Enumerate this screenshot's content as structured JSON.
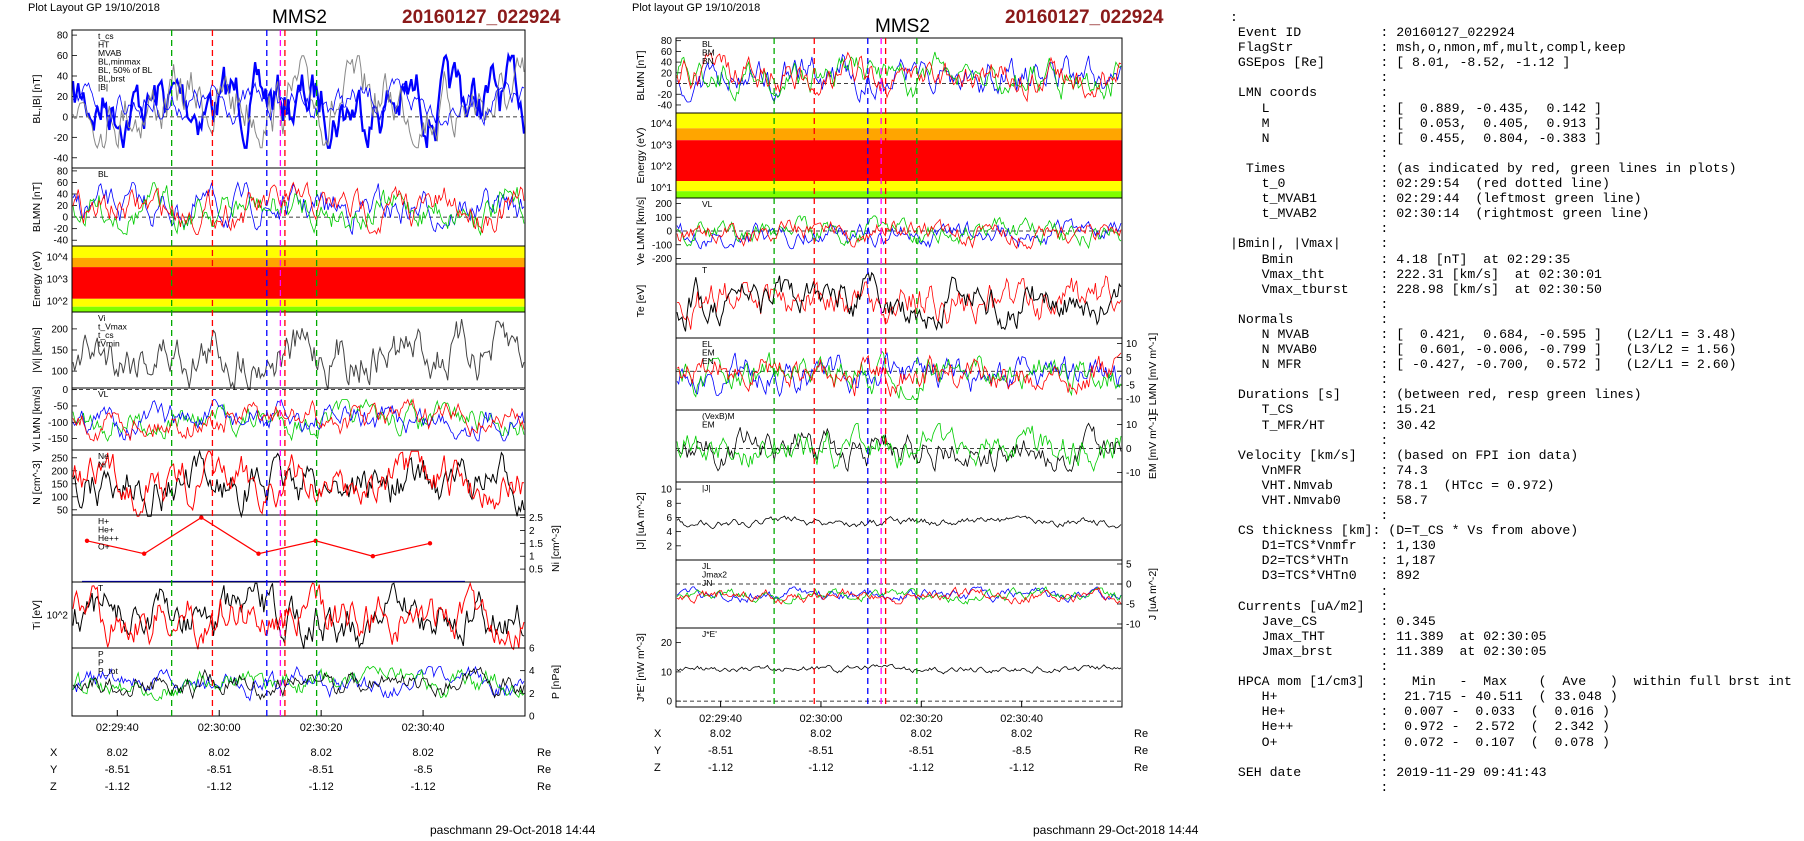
{
  "left_panel": {
    "header": "Plot Layout GP 19/10/2018",
    "spacecraft": "MMS2",
    "event": "20160127_022924",
    "footer": "paschmann 29-Oct-2018 14:44"
  },
  "right_panel": {
    "header": "Plot layout GP 19/10/2018",
    "spacecraft": "MMS2",
    "event": "20160127_022924",
    "footer": "paschmann 29-Oct-2018 14:44"
  },
  "time_ticks": [
    "02:29:40",
    "02:30:00",
    "02:30:20",
    "02:30:40"
  ],
  "ephemeris": {
    "X": [
      "8.02",
      "8.02",
      "8.02",
      "8.02"
    ],
    "Y": [
      "-8.51",
      "-8.51",
      "-8.51",
      "-8.5"
    ],
    "Z": [
      "-1.12",
      "-1.12",
      "-1.12",
      "-1.12"
    ],
    "unit": "Re"
  },
  "chart_data": [
    {
      "panel": "left",
      "type": "line",
      "ylabel": "BL,|B| [nT]",
      "ylim": [
        -50,
        85
      ],
      "yticks": [
        -40,
        -20,
        0,
        20,
        40,
        60,
        80
      ],
      "legend": [
        "t_cs",
        "HT",
        "MVAB",
        "BL,minmax",
        "BL, 50% of BL",
        "BL,brst",
        "|B|"
      ]
    },
    {
      "panel": "left",
      "type": "line",
      "ylabel": "BLMN [nT]",
      "ylim": [
        -50,
        85
      ],
      "yticks": [
        -40,
        -20,
        0,
        20,
        40,
        60,
        80
      ],
      "legend": [
        "BL"
      ]
    },
    {
      "panel": "left",
      "type": "heatmap",
      "ylabel": "Energy (eV)",
      "yticks": [
        "10^2",
        "10^3",
        "10^4"
      ]
    },
    {
      "panel": "left",
      "type": "line",
      "ylabel": "|Vi| [km/s]",
      "ylim": [
        60,
        240
      ],
      "yticks": [
        100,
        150,
        200
      ],
      "legend": [
        "Vi",
        "t_Vmax",
        "t_cs",
        "tVmin"
      ]
    },
    {
      "panel": "left",
      "type": "line",
      "ylabel": "Vi LMN [km/s]",
      "ylim": [
        -185,
        5
      ],
      "yticks": [
        0,
        -50,
        -100,
        -150
      ],
      "legend": [
        "VL"
      ]
    },
    {
      "panel": "left",
      "type": "line",
      "ylabel": "N [cm^-3]",
      "ylim": [
        30,
        280
      ],
      "yticks": [
        50,
        100,
        150,
        200,
        250
      ],
      "legend": [
        "Ne",
        "Ni"
      ]
    },
    {
      "panel": "left",
      "type": "line",
      "ylabel": "Ni [cm^-3]",
      "ylim": [
        0,
        2.6
      ],
      "yticks": [
        0.5,
        1.0,
        1.5,
        2.0,
        2.5
      ],
      "legend": [
        "H+",
        "He+",
        "He++",
        "O+"
      ],
      "series": [
        {
          "name": "He++",
          "x": [
            0,
            20,
            40,
            60,
            80,
            100,
            120
          ],
          "values": [
            1.6,
            1.1,
            2.5,
            1.1,
            1.6,
            1.0,
            1.5
          ]
        }
      ]
    },
    {
      "panel": "left",
      "type": "line",
      "ylabel": "Ti [eV]",
      "yticks": [
        "10^2"
      ],
      "legend": [
        "T"
      ]
    },
    {
      "panel": "left",
      "type": "line",
      "ylabel": "P [nPa]",
      "ylim": [
        0,
        6
      ],
      "yticks": [
        0,
        2,
        4,
        6
      ],
      "legend": [
        "P",
        "P",
        "P_tot"
      ]
    },
    {
      "panel": "right",
      "type": "line",
      "ylabel": "BLMN [nT]",
      "ylim": [
        -55,
        85
      ],
      "yticks": [
        -40,
        -20,
        0,
        20,
        40,
        60,
        80
      ],
      "legend": [
        "BL",
        "BM",
        "BN"
      ]
    },
    {
      "panel": "right",
      "type": "heatmap",
      "ylabel": "Energy (eV)",
      "yticks": [
        "10^1",
        "10^2",
        "10^3",
        "10^4"
      ]
    },
    {
      "panel": "right",
      "type": "line",
      "ylabel": "Ve LMN [km/s]",
      "ylim": [
        -240,
        240
      ],
      "yticks": [
        -200,
        -100,
        0,
        100,
        200
      ],
      "legend": [
        "VL"
      ]
    },
    {
      "panel": "right",
      "type": "line",
      "ylabel": "Te [eV]",
      "legend": [
        "T"
      ]
    },
    {
      "panel": "right",
      "type": "line",
      "ylabel": "E LMN [mV m^-1]",
      "ylim": [
        -14,
        12
      ],
      "yticks": [
        -10,
        -5,
        0,
        5,
        10
      ],
      "legend": [
        "EL",
        "EM",
        "EN"
      ]
    },
    {
      "panel": "right",
      "type": "line",
      "ylabel": "EM [mV m^-1]",
      "ylim": [
        -14,
        16
      ],
      "yticks": [
        -10,
        0,
        10
      ],
      "legend": [
        "(VexB)M",
        "EM"
      ]
    },
    {
      "panel": "right",
      "type": "line",
      "ylabel": "|J| [uA m^-2]",
      "ylim": [
        0,
        11
      ],
      "yticks": [
        2,
        4,
        6,
        8,
        10
      ],
      "legend": [
        "|J|"
      ]
    },
    {
      "panel": "right",
      "type": "line",
      "ylabel": "J [uA m^-2]",
      "ylim": [
        -11,
        6
      ],
      "yticks": [
        -10,
        -5,
        0,
        5
      ],
      "legend": [
        "JL",
        "Jmax2",
        "JN"
      ]
    },
    {
      "panel": "right",
      "type": "line",
      "ylabel": "J*E' [nW m^-3]",
      "ylim": [
        -2,
        25
      ],
      "yticks": [
        0,
        10,
        20
      ],
      "legend": [
        "J*E'"
      ]
    }
  ],
  "summary_text": ":\n Event ID          : 20160127_022924\n FlagStr           : msh,o,nmon,mf,mult,compl,keep\n GSEpos [Re]       : [ 8.01, -8.52, -1.12 ]\n                   :\n LMN coords        :\n    L              : [  0.889, -0.435,  0.142 ]\n    M              : [  0.053,  0.405,  0.913 ]\n    N              : [  0.455,  0.804, -0.383 ]\n                   :\n  Times            : (as indicated by red, green lines in plots)\n    t_0            : 02:29:54  (red dotted line)\n    t_MVAB1        : 02:29:44  (leftmost green line)\n    t_MVAB2        : 02:30:14  (rightmost green line)\n                   :\n|Bmin|, |Vmax|     :\n    Bmin           : 4.18 [nT]  at 02:29:35\n    Vmax_tht       : 222.31 [km/s]  at 02:30:01\n    Vmax_tburst    : 228.98 [km/s]  at 02:30:50\n                   :\n Normals           :\n    N MVAB         : [  0.421,  0.684, -0.595 ]   (L2/L1 = 3.48)\n    N MVAB0        : [  0.601, -0.006, -0.799 ]   (L3/L2 = 1.56)\n    N MFR          : [ -0.427, -0.700,  0.572 ]   (L2/L1 = 2.60)\n                   :\n Durations [s]     : (between red, resp green lines)\n    T_CS           : 15.21\n    T_MFR/HT       : 30.42\n                   :\n Velocity [km/s]   : (based on FPI ion data)\n    VnMFR          : 74.3\n    VHT.Nmvab      : 78.1  (HTcc = 0.972)\n    VHT.Nmvab0     : 58.7\n                   :\n CS thickness [km]: (D=T_CS * Vs from above)\n    D1=TCS*Vnmfr   : 1,130\n    D2=TCS*VHTn    : 1,187\n    D3=TCS*VHTn0   : 892\n                   :\n Currents [uA/m2]  :\n    Jave_CS        : 0.345\n    Jmax_THT       : 11.389  at 02:30:05\n    Jmax_brst      : 11.389  at 02:30:05\n                   :\n HPCA mom [1/cm3]  :   Min   -  Max    (  Ave   )  within full brst int\n    H+             :  21.715 - 40.511  ( 33.048 )\n    He+            :  0.007 -  0.033  (  0.016 )\n    He++           :  0.972 -  2.572  (  2.342 )\n    O+             :  0.072 -  0.107  (  0.078 )\n                   :\n SEH date          : 2019-11-29 09:41:43\n                   :"
}
